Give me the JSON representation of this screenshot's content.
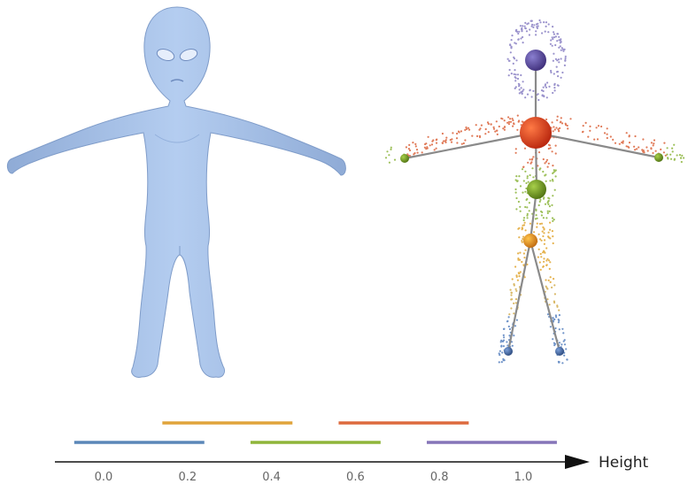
{
  "axis": {
    "label": "Height",
    "ticks": [
      {
        "value": 0.0,
        "label": "0.0"
      },
      {
        "value": 0.2,
        "label": "0.2"
      },
      {
        "value": 0.4,
        "label": "0.4"
      },
      {
        "value": 0.6,
        "label": "0.6"
      },
      {
        "value": 0.8,
        "label": "0.8"
      },
      {
        "value": 1.0,
        "label": "1.0"
      }
    ]
  },
  "height_bands": [
    {
      "range": [
        -0.07,
        0.24
      ],
      "color": "#5b87b8"
    },
    {
      "range": [
        0.14,
        0.45
      ],
      "color": "#e0a43b"
    },
    {
      "range": [
        0.35,
        0.66
      ],
      "color": "#8fb53a"
    },
    {
      "range": [
        0.56,
        0.87
      ],
      "color": "#dd6a3e"
    },
    {
      "range": [
        0.77,
        1.08
      ],
      "color": "#8575b8"
    }
  ],
  "colors": {
    "mesh": "#a8c3e8",
    "mesh_shade": "#7f9cc9",
    "skeleton_line": "#8a8a8a"
  }
}
